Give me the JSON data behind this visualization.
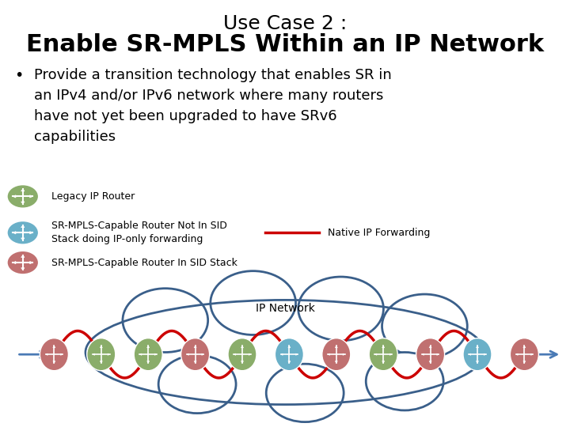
{
  "title_line1": "Use Case 2 :",
  "title_line2": "Enable SR-MPLS Within an IP Network",
  "bullet_text": "Provide a transition technology that enables SR in\nan IPv4 and/or IPv6 network where many routers\nhave not yet been upgraded to have SRv6\ncapabilities",
  "legend_1_label": "Legacy IP Router",
  "legend_2_label": "SR-MPLS-Capable Router Not In SID\nStack doing IP-only forwarding",
  "legend_3_label": "SR-MPLS-Capable Router In SID Stack",
  "native_ip_label": "Native IP Forwarding",
  "native_ip_line_color": "#cc0000",
  "ip_network_label": "IP Network",
  "cloud_color": "#3a5f8a",
  "background_color": "#ffffff",
  "node_sequence": [
    "red",
    "green",
    "green",
    "red",
    "green",
    "blue",
    "red",
    "green",
    "red",
    "blue",
    "red"
  ],
  "color_red": "#c07070",
  "color_green": "#8aad6a",
  "color_blue": "#6ab0c8",
  "arrow_color": "#4a7ab5",
  "title1_fontsize": 18,
  "title2_fontsize": 22,
  "bullet_fontsize": 13,
  "legend_fontsize": 9
}
